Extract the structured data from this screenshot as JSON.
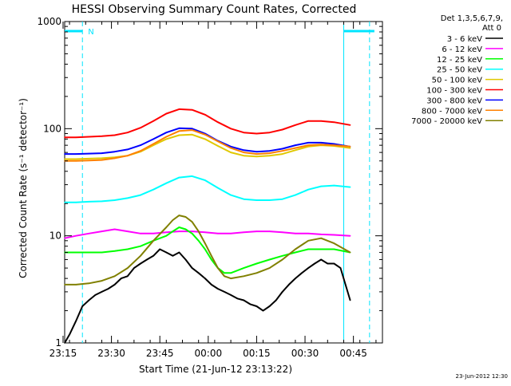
{
  "chart_data": {
    "type": "line",
    "title": "HESSI Observing Summary Count Rates, Corrected",
    "xlabel": "Start Time (21-Jun-12 23:13:22)",
    "ylabel": "Corrected Count Rate (s⁻¹ detector⁻¹)",
    "yscale": "log",
    "ylim": [
      1,
      1000
    ],
    "xlim_minutes": [
      23.5,
      122.0
    ],
    "x_unit": "minutes from 22:52:00 (approx)",
    "x_ticks": [
      {
        "value": 23,
        "label": "23:15"
      },
      {
        "value": 38,
        "label": "23:30"
      },
      {
        "value": 53,
        "label": "23:45"
      },
      {
        "value": 68,
        "label": "00:00"
      },
      {
        "value": 83,
        "label": "00:15"
      },
      {
        "value": 98,
        "label": "00:30"
      },
      {
        "value": 113,
        "label": "00:45"
      }
    ],
    "y_ticks": [
      {
        "value": 1,
        "label": "1"
      },
      {
        "value": 10,
        "label": "10"
      },
      {
        "value": 100,
        "label": "100"
      },
      {
        "value": 1000,
        "label": "1000"
      }
    ],
    "detector_info": [
      "Det 1,3,5,6,7,9,",
      "Att 0"
    ],
    "series": [
      {
        "name": "3 - 6 keV",
        "color": "#000000",
        "x": [
          23.5,
          25,
          27,
          29,
          31,
          33,
          35,
          37,
          39,
          41,
          43,
          45,
          47,
          49,
          51,
          53,
          55,
          57,
          59,
          61,
          63,
          65,
          67,
          69,
          71,
          73,
          75,
          77,
          79,
          81,
          83,
          85,
          87,
          89,
          91,
          93,
          95,
          97,
          99,
          101,
          103,
          105,
          107,
          109,
          112
        ],
        "y": [
          1.0,
          1.2,
          1.6,
          2.2,
          2.5,
          2.8,
          3.0,
          3.2,
          3.5,
          4.0,
          4.2,
          5.0,
          5.5,
          6.0,
          6.5,
          7.5,
          7.0,
          6.5,
          7.0,
          6.0,
          5.0,
          4.5,
          4.0,
          3.5,
          3.2,
          3.0,
          2.8,
          2.6,
          2.5,
          2.3,
          2.2,
          2.0,
          2.2,
          2.5,
          3.0,
          3.5,
          4.0,
          4.5,
          5.0,
          5.5,
          6.0,
          5.5,
          5.5,
          5.0,
          2.5
        ]
      },
      {
        "name": "6 - 12 keV",
        "color": "#ff00ff",
        "x": [
          23.5,
          27,
          31,
          35,
          39,
          43,
          47,
          51,
          55,
          59,
          63,
          67,
          71,
          75,
          79,
          83,
          87,
          91,
          95,
          99,
          103,
          107,
          112
        ],
        "y": [
          9.5,
          10.0,
          10.5,
          11.0,
          11.5,
          11.0,
          10.5,
          10.5,
          10.8,
          11.0,
          11.0,
          10.8,
          10.5,
          10.5,
          10.8,
          11.0,
          11.0,
          10.8,
          10.5,
          10.5,
          10.3,
          10.2,
          10.0
        ]
      },
      {
        "name": "12 - 25 keV",
        "color": "#00ff00",
        "x": [
          23.5,
          27,
          31,
          35,
          39,
          43,
          47,
          51,
          55,
          57,
          59,
          61,
          63,
          65,
          67,
          69,
          71,
          73,
          75,
          79,
          83,
          87,
          91,
          95,
          99,
          103,
          107,
          112
        ],
        "y": [
          7.0,
          7.0,
          7.0,
          7.0,
          7.2,
          7.5,
          8.0,
          9.0,
          10.0,
          11.0,
          12.0,
          11.5,
          10.5,
          9.0,
          7.5,
          6.0,
          5.0,
          4.5,
          4.5,
          5.0,
          5.5,
          6.0,
          6.5,
          7.0,
          7.5,
          7.5,
          7.5,
          7.0
        ]
      },
      {
        "name": "25 - 50 keV",
        "color": "#00ffff",
        "x": [
          23.5,
          27,
          31,
          35,
          39,
          43,
          47,
          51,
          55,
          59,
          63,
          67,
          71,
          75,
          79,
          83,
          87,
          91,
          95,
          99,
          103,
          107,
          112
        ],
        "y": [
          20.5,
          20.5,
          20.8,
          21.0,
          21.5,
          22.5,
          24.0,
          27.0,
          31.0,
          35.0,
          36.0,
          33.0,
          28.0,
          24.0,
          22.0,
          21.5,
          21.5,
          22.0,
          24.0,
          27.0,
          29.0,
          29.5,
          28.5
        ]
      },
      {
        "name": "50 - 100 keV",
        "color": "#e0c800",
        "x": [
          23.5,
          27,
          31,
          35,
          39,
          43,
          47,
          51,
          55,
          59,
          63,
          67,
          71,
          75,
          79,
          83,
          87,
          91,
          95,
          99,
          103,
          107,
          112
        ],
        "y": [
          52.0,
          52.0,
          52.5,
          53.0,
          54.0,
          56.0,
          61.0,
          70.0,
          80.0,
          87.0,
          88.0,
          80.0,
          69.0,
          60.0,
          56.0,
          55.0,
          56.0,
          58.0,
          63.0,
          68.0,
          70.0,
          69.0,
          66.0
        ]
      },
      {
        "name": "100 - 300 keV",
        "color": "#ff0000",
        "x": [
          23.5,
          27,
          31,
          35,
          39,
          43,
          47,
          51,
          55,
          59,
          63,
          67,
          71,
          75,
          79,
          83,
          87,
          91,
          95,
          99,
          103,
          107,
          112
        ],
        "y": [
          83.0,
          83.0,
          84.0,
          85.0,
          87.0,
          92.0,
          102.0,
          118.0,
          138.0,
          152.0,
          150.0,
          135.0,
          115.0,
          100.0,
          92.0,
          90.0,
          92.0,
          98.0,
          108.0,
          118.0,
          118.0,
          115.0,
          108.0
        ]
      },
      {
        "name": "300 - 800 keV",
        "color": "#0000ff",
        "x": [
          23.5,
          27,
          31,
          35,
          39,
          43,
          47,
          51,
          55,
          59,
          63,
          67,
          71,
          75,
          79,
          83,
          87,
          91,
          95,
          99,
          103,
          107,
          112
        ],
        "y": [
          58.0,
          58.0,
          58.5,
          59.0,
          61.0,
          64.0,
          70.0,
          80.0,
          92.0,
          101.0,
          100.0,
          90.0,
          77.0,
          68.0,
          63.0,
          61.0,
          62.0,
          65.0,
          70.0,
          74.0,
          74.0,
          72.0,
          68.0
        ]
      },
      {
        "name": "800 - 7000 keV",
        "color": "#ff8000",
        "x": [
          23.5,
          27,
          31,
          35,
          39,
          43,
          47,
          51,
          55,
          59,
          63,
          67,
          71,
          75,
          79,
          83,
          87,
          91,
          95,
          99,
          103,
          107,
          112
        ],
        "y": [
          50.0,
          50.0,
          50.5,
          51.0,
          53.0,
          56.0,
          62.0,
          72.0,
          84.0,
          95.0,
          97.0,
          88.0,
          76.0,
          66.0,
          60.0,
          58.0,
          59.0,
          62.0,
          66.0,
          70.0,
          71.0,
          70.0,
          68.0
        ]
      },
      {
        "name": "7000 - 20000 keV",
        "color": "#808000",
        "x": [
          23.5,
          27,
          31,
          35,
          39,
          43,
          47,
          51,
          55,
          57,
          59,
          61,
          63,
          65,
          67,
          69,
          71,
          73,
          75,
          79,
          83,
          87,
          91,
          95,
          99,
          103,
          107,
          112
        ],
        "y": [
          3.5,
          3.5,
          3.6,
          3.8,
          4.2,
          5.0,
          6.5,
          9.0,
          12.0,
          14.0,
          15.5,
          15.0,
          13.5,
          11.0,
          8.5,
          6.5,
          5.0,
          4.2,
          4.0,
          4.2,
          4.5,
          5.0,
          6.0,
          7.5,
          9.0,
          9.5,
          8.5,
          7.0
        ]
      }
    ],
    "markers": {
      "night_label": "N",
      "vertical_lines": [
        {
          "x": 29.0,
          "style": "dashed"
        },
        {
          "x": 110.0,
          "style": "solid"
        },
        {
          "x": 118.0,
          "style": "dashed"
        }
      ]
    },
    "legend_position": "right"
  },
  "footer_timestamp": "23-Jun-2012 12:30"
}
